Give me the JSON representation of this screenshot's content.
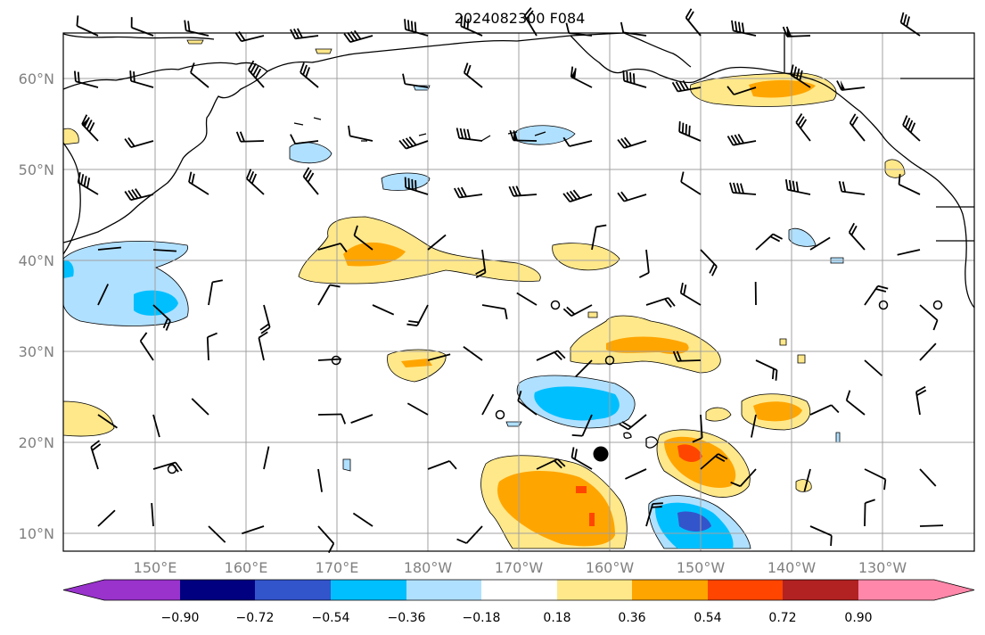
{
  "title": "2024082300 F084",
  "map": {
    "lat_labels": [
      "10°N",
      "20°N",
      "30°N",
      "40°N",
      "50°N",
      "60°N"
    ],
    "lon_labels": [
      "150°E",
      "160°E",
      "170°E",
      "180°W",
      "170°W",
      "160°W",
      "150°W",
      "140°W",
      "130°W"
    ],
    "storm_marker": {
      "lat": 18.7,
      "lon_label": "160°W area"
    }
  },
  "colorbar": {
    "ticks": [
      "−0.90",
      "−0.72",
      "−0.54",
      "−0.36",
      "−0.18",
      "0.18",
      "0.36",
      "0.54",
      "0.72",
      "0.90"
    ],
    "colors": [
      "#9933cc",
      "#000080",
      "#3355cc",
      "#00bfff",
      "#b0e0ff",
      "#ffffff",
      "#ffe88a",
      "#ffa500",
      "#ff4500",
      "#b22222",
      "#ff88aa"
    ]
  }
}
